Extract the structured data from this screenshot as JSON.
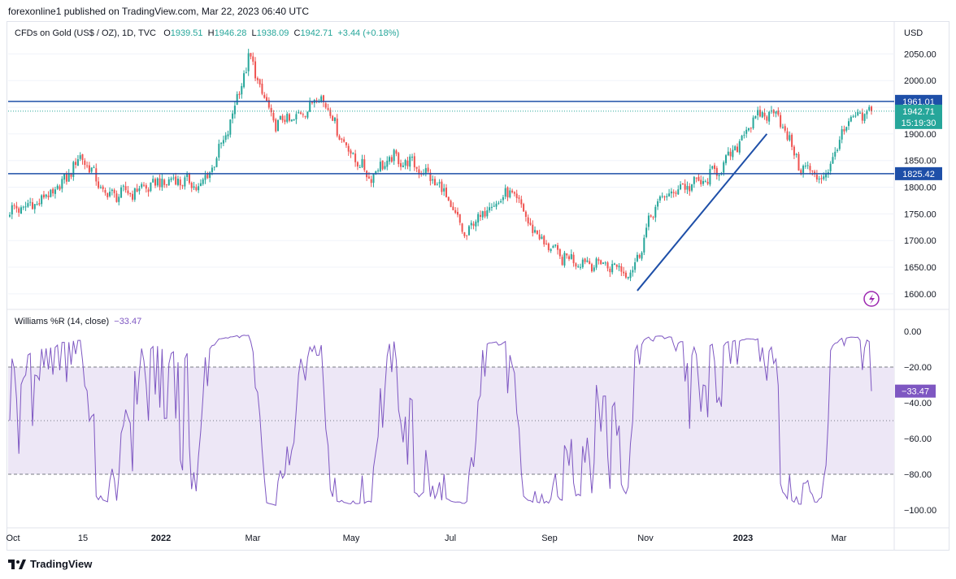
{
  "header": {
    "publisher": "forexonline1 published on TradingView.com, Mar 22, 2023 06:40 UTC"
  },
  "legend": {
    "symbol": "CFDs on Gold (US$ / OZ), 1D, TVC",
    "open_label": "O",
    "open": "1939.51",
    "high_label": "H",
    "high": "1946.28",
    "low_label": "L",
    "low": "1938.09",
    "close_label": "C",
    "close": "1942.71",
    "change": "+3.44 (+0.18%)"
  },
  "indicator": {
    "name": "Williams %R (14, close)",
    "value": "−33.47",
    "badge": "−33.47"
  },
  "footer": {
    "brand": "TradingView"
  },
  "colors": {
    "up": "#26a69a",
    "down": "#ef5350",
    "line": "#2962ff",
    "level": "#1e4fa8",
    "wr": "#7e57c2",
    "wr_band": "#ede7f6"
  },
  "chart_data": [
    {
      "type": "candlestick",
      "currency_label": "USD",
      "y_ticks": [
        "2050.00",
        "2000.00",
        "1950.00",
        "1900.00",
        "1850.00",
        "1800.00",
        "1750.00",
        "1700.00",
        "1650.00",
        "1600.00"
      ],
      "ylim": [
        1580,
        2075
      ],
      "x_ticks": [
        "Oct",
        "15",
        "2022",
        "Mar",
        "May",
        "Jul",
        "Sep",
        "Nov",
        "2023",
        "Mar"
      ],
      "horizontal_levels": [
        {
          "value": 1961.01,
          "label": "1961.01"
        },
        {
          "value": 1825.42,
          "label": "1825.42"
        }
      ],
      "last_price": {
        "value": 1942.71,
        "label": "1942.71",
        "countdown": "15:19:30"
      },
      "trendline": {
        "from": [
          "Nov",
          1606
        ],
        "to": [
          "Jan 2023",
          1900
        ]
      },
      "approx_closes": [
        [
          "Oct 2021",
          1755
        ],
        [
          "mid Oct 2021",
          1768
        ],
        [
          "Nov 2021",
          1795
        ],
        [
          "mid Nov 2021",
          1860
        ],
        [
          "Dec 2021",
          1785
        ],
        [
          "mid Dec 2021",
          1790
        ],
        [
          "Jan 2022",
          1805
        ],
        [
          "mid Jan 2022",
          1815
        ],
        [
          "Feb 2022",
          1800
        ],
        [
          "mid Feb 2022",
          1890
        ],
        [
          "Mar 2022",
          2045
        ],
        [
          "mid Mar 2022",
          1920
        ],
        [
          "Apr 2022",
          1930
        ],
        [
          "mid Apr 2022",
          1975
        ],
        [
          "May 2022",
          1880
        ],
        [
          "mid May 2022",
          1820
        ],
        [
          "Jun 2022",
          1855
        ],
        [
          "mid Jun 2022",
          1840
        ],
        [
          "Jul 2022",
          1800
        ],
        [
          "mid Jul 2022",
          1710
        ],
        [
          "Aug 2022",
          1765
        ],
        [
          "mid Aug 2022",
          1790
        ],
        [
          "Sep 2022",
          1710
        ],
        [
          "mid Sep 2022",
          1670
        ],
        [
          "Oct 2022",
          1660
        ],
        [
          "mid Oct 2022",
          1655
        ],
        [
          "Nov 2022",
          1640
        ],
        [
          "mid Nov 2022",
          1770
        ],
        [
          "Dec 2022",
          1800
        ],
        [
          "mid Dec 2022",
          1810
        ],
        [
          "Jan 2023",
          1850
        ],
        [
          "mid Jan 2023",
          1925
        ],
        [
          "Feb 2023",
          1945
        ],
        [
          "mid Feb 2023",
          1840
        ],
        [
          "Mar 2023",
          1815
        ],
        [
          "mid Mar 2023",
          1920
        ],
        [
          "Mar 22 2023",
          1942.71
        ]
      ]
    },
    {
      "type": "line",
      "name": "Williams %R (14, close)",
      "y_ticks": [
        "0.00",
        "−20.00",
        "−40.00",
        "−60.00",
        "−80.00",
        "−100.00"
      ],
      "ylim": [
        -100,
        0
      ],
      "bands": [
        -20,
        -50,
        -80
      ],
      "last_value": -33.47
    }
  ]
}
